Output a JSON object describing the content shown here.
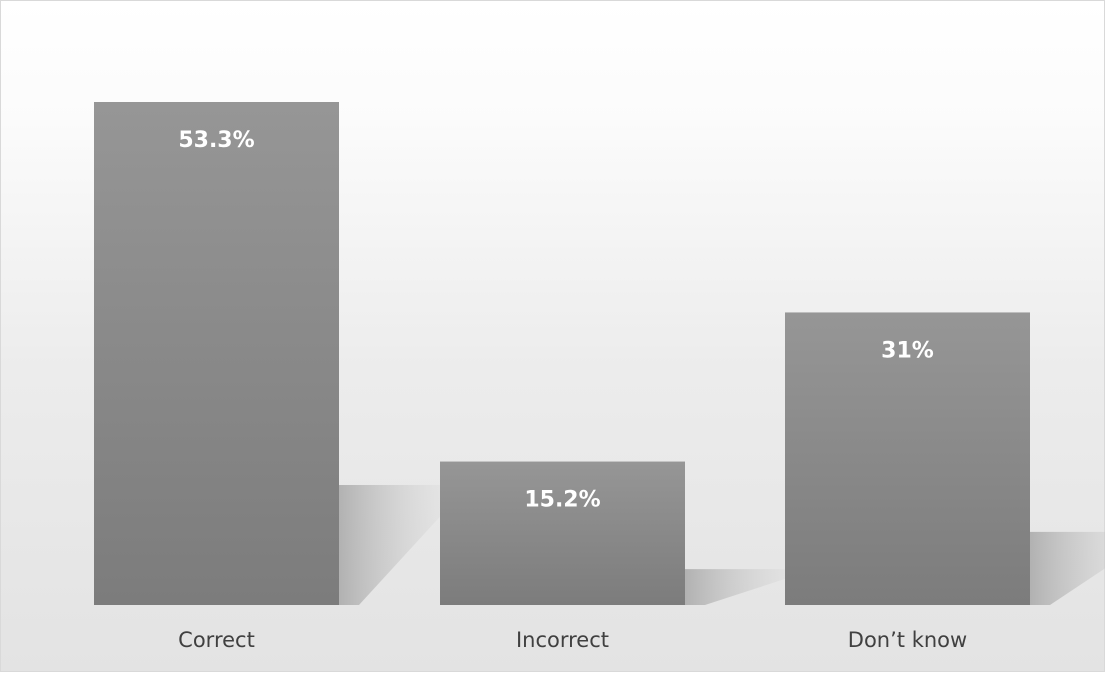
{
  "chart_data": {
    "type": "bar",
    "categories": [
      "Correct",
      "Incorrect",
      "Don’t know"
    ],
    "values": [
      53.3,
      15.2,
      31
    ],
    "data_labels": [
      "53.3%",
      "15.2%",
      "31%"
    ],
    "ylim": [
      0,
      60
    ],
    "grid": false,
    "legend": "none",
    "bar_color": "#8a8a8a"
  }
}
